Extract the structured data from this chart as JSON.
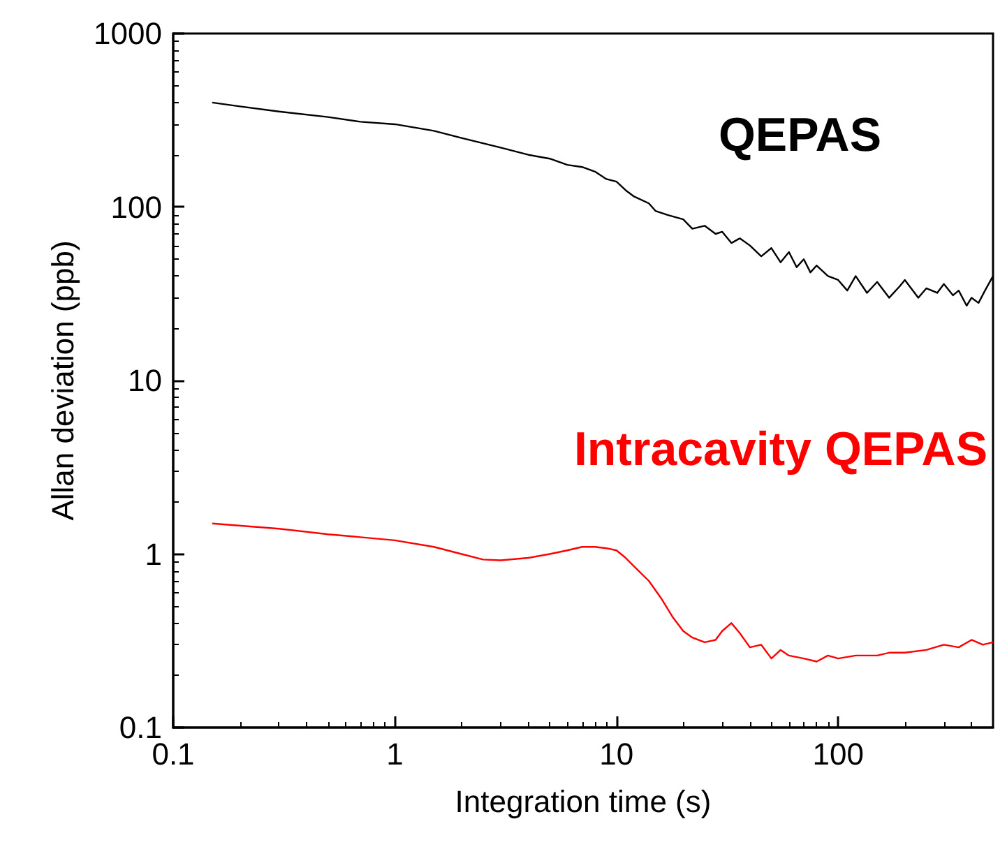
{
  "chart_data": {
    "type": "line",
    "xlabel": "Integration time (s)",
    "ylabel": "Allan deviation (ppb)",
    "log": "xy",
    "xlim": [
      0.1,
      500
    ],
    "xticks": [
      0.1,
      1,
      10,
      100
    ],
    "ylim": [
      0.1,
      1000
    ],
    "yticks": [
      0.1,
      1,
      10,
      100,
      1000
    ],
    "grid": false,
    "legend": false,
    "marker": "none",
    "line_style": "solid",
    "series": [
      {
        "name": "QEPAS",
        "color": "#000000",
        "x": [
          0.15,
          0.2,
          0.3,
          0.5,
          0.7,
          1,
          1.5,
          2,
          3,
          4,
          5,
          6,
          7,
          8,
          9,
          10,
          11,
          12,
          14,
          15,
          17,
          20,
          22,
          25,
          28,
          30,
          33,
          36,
          40,
          45,
          50,
          55,
          60,
          65,
          70,
          75,
          80,
          90,
          100,
          110,
          120,
          135,
          150,
          170,
          190,
          200,
          230,
          250,
          280,
          300,
          330,
          350,
          380,
          400,
          430,
          460,
          500
        ],
        "values": [
          400,
          380,
          355,
          330,
          310,
          300,
          275,
          250,
          220,
          200,
          190,
          175,
          170,
          160,
          145,
          140,
          125,
          115,
          105,
          95,
          90,
          85,
          75,
          78,
          70,
          72,
          62,
          66,
          60,
          52,
          58,
          48,
          55,
          45,
          50,
          42,
          46,
          40,
          38,
          33,
          40,
          32,
          37,
          30,
          35,
          38,
          30,
          34,
          32,
          36,
          31,
          33,
          27,
          30,
          28,
          33,
          40
        ]
      },
      {
        "name": "Intracavity QEPAS",
        "color": "#ff0000",
        "x": [
          0.15,
          0.3,
          0.5,
          1,
          1.5,
          2,
          2.5,
          3,
          4,
          5,
          6,
          7,
          8,
          9,
          10,
          11,
          12,
          14,
          16,
          18,
          20,
          22,
          25,
          28,
          30,
          33,
          36,
          40,
          45,
          50,
          55,
          60,
          70,
          80,
          90,
          100,
          120,
          150,
          170,
          200,
          250,
          300,
          350,
          400,
          450,
          500
        ],
        "values": [
          1.5,
          1.4,
          1.3,
          1.2,
          1.1,
          1,
          0.93,
          0.92,
          0.95,
          1,
          1.05,
          1.1,
          1.1,
          1.08,
          1.05,
          0.95,
          0.85,
          0.7,
          0.55,
          0.43,
          0.36,
          0.33,
          0.31,
          0.32,
          0.36,
          0.4,
          0.35,
          0.29,
          0.3,
          0.25,
          0.28,
          0.26,
          0.25,
          0.24,
          0.26,
          0.25,
          0.26,
          0.26,
          0.27,
          0.27,
          0.28,
          0.3,
          0.29,
          0.32,
          0.3,
          0.31
        ]
      }
    ]
  }
}
